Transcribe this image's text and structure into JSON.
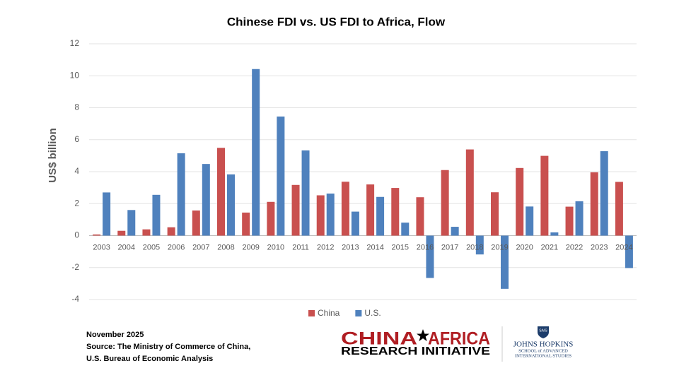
{
  "chart_data": {
    "type": "bar",
    "title": "Chinese FDI vs. US FDI to Africa, Flow",
    "y_label": "US$ billion",
    "categories": [
      "2003",
      "2004",
      "2005",
      "2006",
      "2007",
      "2008",
      "2009",
      "2010",
      "2011",
      "2012",
      "2013",
      "2014",
      "2015",
      "2016",
      "2017",
      "2018",
      "2019",
      "2020",
      "2021",
      "2022",
      "2023",
      "2024"
    ],
    "series": [
      {
        "name": "China",
        "color": "#c9504f",
        "values": [
          0.07,
          0.3,
          0.39,
          0.52,
          1.57,
          5.49,
          1.44,
          2.11,
          3.17,
          2.52,
          3.37,
          3.2,
          2.98,
          2.4,
          4.1,
          5.39,
          2.71,
          4.23,
          4.99,
          1.81,
          3.96,
          3.36
        ]
      },
      {
        "name": "U.S.",
        "color": "#4f81bd",
        "values": [
          2.7,
          1.6,
          2.55,
          5.15,
          4.48,
          3.83,
          10.42,
          7.45,
          5.33,
          2.63,
          1.5,
          2.42,
          0.81,
          -2.65,
          0.55,
          -1.18,
          -3.33,
          1.82,
          0.2,
          2.15,
          5.28,
          -2.03
        ]
      }
    ],
    "ylim": [
      -4,
      12
    ],
    "yticks": [
      -4,
      -2,
      0,
      2,
      4,
      6,
      8,
      10,
      12
    ],
    "grid": true,
    "legend": "bottom"
  },
  "footer": {
    "date": "November 2025",
    "source": [
      "Source: The Ministry of Commerce of China,",
      "U.S. Bureau of Economic Analysis"
    ],
    "logo_left": [
      "CHINA",
      "AFRICA",
      "RESEARCH INITIATIVE"
    ],
    "logo_right": [
      "SAIS",
      "JOHNS HOPKINS",
      "SCHOOL of ADVANCED",
      "INTERNATIONAL STUDIES"
    ]
  }
}
